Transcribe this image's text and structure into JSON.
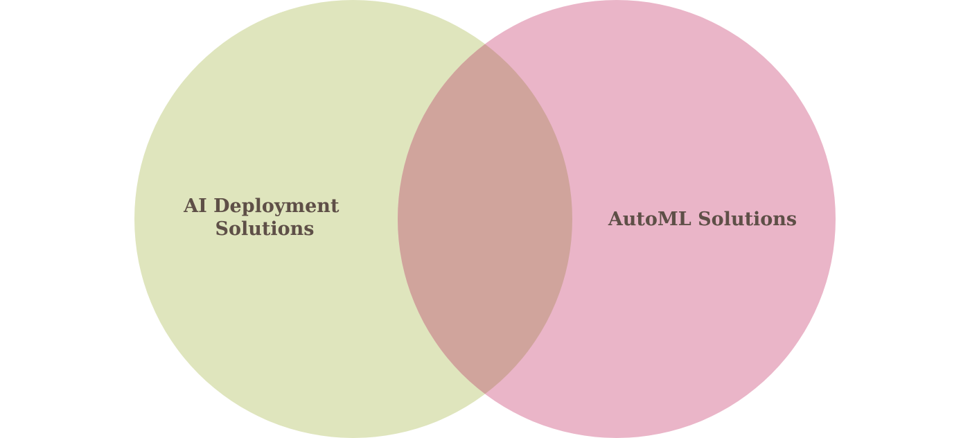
{
  "diagram": {
    "type": "venn",
    "sets": [
      {
        "id": "ai-deployment",
        "label_lines": [
          "AI Deployment",
          "Solutions"
        ],
        "color": "#dfe5bd"
      },
      {
        "id": "automl",
        "label_lines": [
          "AutoML Solutions"
        ],
        "color": "#eab5c8"
      }
    ],
    "intersection": {
      "color": "#d0a49c",
      "label": ""
    },
    "text_color": "#5e4f47",
    "background": "#ffffff"
  }
}
